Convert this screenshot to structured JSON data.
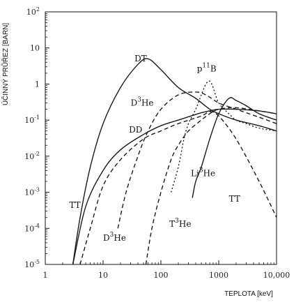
{
  "chart_data": {
    "type": "line",
    "xlabel": "TEPLOTA [keV]",
    "ylabel": "ÚČINNÝ PRŮŘEZ [BARN]",
    "xscale": "log",
    "yscale": "log",
    "xlim": [
      1,
      10000
    ],
    "ylim": [
      1e-05,
      100
    ],
    "grid": false,
    "x_ticks": [
      {
        "value": 1,
        "label": "1"
      },
      {
        "value": 10,
        "label": "10"
      },
      {
        "value": 100,
        "label": "100"
      },
      {
        "value": 1000,
        "label": "1000"
      },
      {
        "value": 10000,
        "label": "10,000"
      }
    ],
    "y_ticks": [
      {
        "value": 100,
        "base": "10",
        "exp": "2"
      },
      {
        "value": 10,
        "base": "10",
        "exp": ""
      },
      {
        "value": 1,
        "base": "1",
        "exp": ""
      },
      {
        "value": 0.1,
        "base": "10",
        "exp": "-1"
      },
      {
        "value": 0.01,
        "base": "10",
        "exp": "-2"
      },
      {
        "value": 0.001,
        "base": "10",
        "exp": "-3"
      },
      {
        "value": 0.0001,
        "base": "10",
        "exp": "-4"
      },
      {
        "value": 1e-05,
        "base": "10",
        "exp": "-5"
      }
    ],
    "series": [
      {
        "id": "dt",
        "style": "solid",
        "x": [
          3,
          4,
          6,
          10,
          20,
          40,
          60,
          100,
          200,
          400,
          700,
          1000,
          2000,
          5000,
          10000
        ],
        "y": [
          1e-05,
          0.0002,
          0.005,
          0.08,
          0.8,
          3.5,
          5,
          2.5,
          0.8,
          0.4,
          0.2,
          0.15,
          0.1,
          0.07,
          0.05
        ]
      },
      {
        "id": "dd",
        "style": "solid",
        "x": [
          3,
          5,
          10,
          20,
          50,
          100,
          200,
          500,
          700,
          1000,
          2000,
          5000,
          10000
        ],
        "y": [
          1e-05,
          0.0004,
          0.004,
          0.015,
          0.04,
          0.07,
          0.1,
          0.16,
          0.18,
          0.2,
          0.2,
          0.18,
          0.15
        ]
      },
      {
        "id": "tt",
        "style": "dashed",
        "x": [
          4,
          6,
          10,
          20,
          50,
          100,
          200,
          500,
          700,
          1000,
          2000,
          5000,
          10000
        ],
        "y": [
          1e-05,
          0.0001,
          0.0015,
          0.008,
          0.03,
          0.05,
          0.08,
          0.13,
          0.17,
          0.13,
          0.03,
          0.002,
          0.0002
        ]
      },
      {
        "id": "dhe3",
        "style": "dashed",
        "x": [
          18,
          25,
          40,
          60,
          100,
          200,
          400,
          600,
          1000,
          2000,
          5000,
          10000
        ],
        "y": [
          0.0001,
          0.001,
          0.01,
          0.05,
          0.2,
          0.5,
          0.6,
          0.5,
          0.3,
          0.2,
          0.12,
          0.08
        ]
      },
      {
        "id": "the3",
        "style": "dashed",
        "x": [
          55,
          70,
          100,
          150,
          200,
          300,
          500,
          700,
          1000,
          2000,
          5000,
          10000
        ],
        "y": [
          1e-05,
          0.0001,
          0.001,
          0.008,
          0.02,
          0.05,
          0.1,
          0.15,
          0.2,
          0.22,
          0.18,
          0.15
        ]
      },
      {
        "id": "pb11",
        "style": "dotted",
        "x": [
          150,
          200,
          250,
          300,
          400,
          500,
          600,
          700,
          800,
          1000,
          1500,
          2000,
          3000,
          5000,
          10000
        ],
        "y": [
          0.001,
          0.005,
          0.03,
          0.08,
          0.2,
          0.5,
          1,
          1.2,
          0.8,
          0.3,
          0.15,
          0.1,
          0.08,
          0.06,
          0.05
        ]
      },
      {
        "id": "lihe3",
        "style": "solid",
        "x": [
          350,
          400,
          500,
          700,
          1000,
          1500,
          2000,
          3000,
          5000,
          10000
        ],
        "y": [
          0.0007,
          0.002,
          0.005,
          0.03,
          0.15,
          0.4,
          0.35,
          0.25,
          0.15,
          0.1
        ]
      }
    ],
    "annotations": [
      {
        "base": "DT",
        "sup": "",
        "post": "",
        "x": 35,
        "y": 4.2
      },
      {
        "base": "D",
        "sup": "3",
        "post": "He",
        "x": 30,
        "y": 0.25
      },
      {
        "base": "p",
        "sup": "11",
        "post": "B",
        "x": 420,
        "y": 2.2
      },
      {
        "base": "DD",
        "sup": "",
        "post": "",
        "x": 28,
        "y": 0.045
      },
      {
        "base": "Li",
        "sup": "3",
        "post": "He",
        "x": 330,
        "y": 0.0028
      },
      {
        "base": "TT",
        "sup": "",
        "post": "",
        "x": 2.6,
        "y": 0.00037
      },
      {
        "base": "TT",
        "sup": "",
        "post": "",
        "x": 1500,
        "y": 0.00055
      },
      {
        "base": "T",
        "sup": "3",
        "post": "He",
        "x": 140,
        "y": 0.00011
      },
      {
        "base": "D",
        "sup": "3",
        "post": "He",
        "x": 10,
        "y": 4.5e-05
      }
    ]
  }
}
